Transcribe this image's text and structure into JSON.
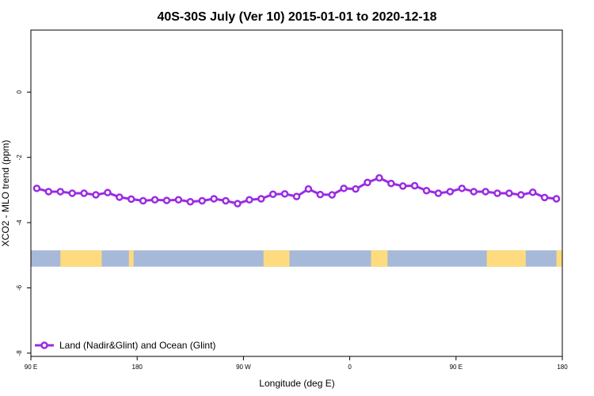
{
  "colors": {
    "series": "#9a2be2",
    "ocean_band": "#a7b9d8",
    "land_band": "#fedb7e",
    "axis": "#000000"
  },
  "chart_data": {
    "type": "line",
    "title": "40S-30S July (Ver 10)   2015-01-01 to 2020-12-18",
    "xlabel": "Longitude (deg E)",
    "ylabel": "XCO2 - MLO trend (ppm)",
    "x_unit": "longitude in degrees (eastward, wrapping from 90 E through 180 to 180)",
    "xlim": [
      90,
      540
    ],
    "ylim": [
      -8.1,
      1.9
    ],
    "x_ticks": [
      {
        "value": 90,
        "label": "90 E"
      },
      {
        "value": 180,
        "label": "180"
      },
      {
        "value": 270,
        "label": "90 W"
      },
      {
        "value": 360,
        "label": "0"
      },
      {
        "value": 450,
        "label": "90 E"
      },
      {
        "value": 540,
        "label": "180"
      }
    ],
    "y_ticks": [
      {
        "value": 0,
        "label": "0"
      },
      {
        "value": -2,
        "label": "-2"
      },
      {
        "value": -4,
        "label": "-4"
      },
      {
        "value": -6,
        "label": "-6"
      },
      {
        "value": -8,
        "label": "-8"
      }
    ],
    "grid": false,
    "legend_position": "bottom-left",
    "series": [
      {
        "name": "Land (Nadir&Glint) and Ocean (Glint)",
        "x": [
          95,
          105,
          115,
          125,
          135,
          145,
          155,
          165,
          175,
          185,
          195,
          205,
          215,
          225,
          235,
          245,
          255,
          265,
          275,
          285,
          295,
          305,
          315,
          325,
          335,
          345,
          355,
          365,
          375,
          385,
          395,
          405,
          415,
          425,
          435,
          445,
          455,
          465,
          475,
          485,
          495,
          505,
          515,
          525,
          535
        ],
        "y": [
          -2.95,
          -3.05,
          -3.05,
          -3.1,
          -3.1,
          -3.15,
          -3.08,
          -3.22,
          -3.28,
          -3.33,
          -3.3,
          -3.32,
          -3.3,
          -3.36,
          -3.33,
          -3.27,
          -3.33,
          -3.42,
          -3.3,
          -3.27,
          -3.13,
          -3.12,
          -3.2,
          -2.97,
          -3.14,
          -3.15,
          -2.95,
          -2.97,
          -2.77,
          -2.63,
          -2.8,
          -2.88,
          -2.87,
          -3.02,
          -3.1,
          -3.05,
          -2.95,
          -3.05,
          -3.05,
          -3.1,
          -3.1,
          -3.15,
          -3.07,
          -3.23,
          -3.27
        ]
      }
    ]
  },
  "map_band": {
    "y_top": -4.85,
    "y_bottom": -5.35,
    "land_segments": [
      {
        "from": 115,
        "to": 150
      },
      {
        "from": 173,
        "to": 177
      },
      {
        "from": 287,
        "to": 309
      },
      {
        "from": 378,
        "to": 392
      },
      {
        "from": 476,
        "to": 509
      },
      {
        "from": 535,
        "to": 540
      }
    ]
  }
}
